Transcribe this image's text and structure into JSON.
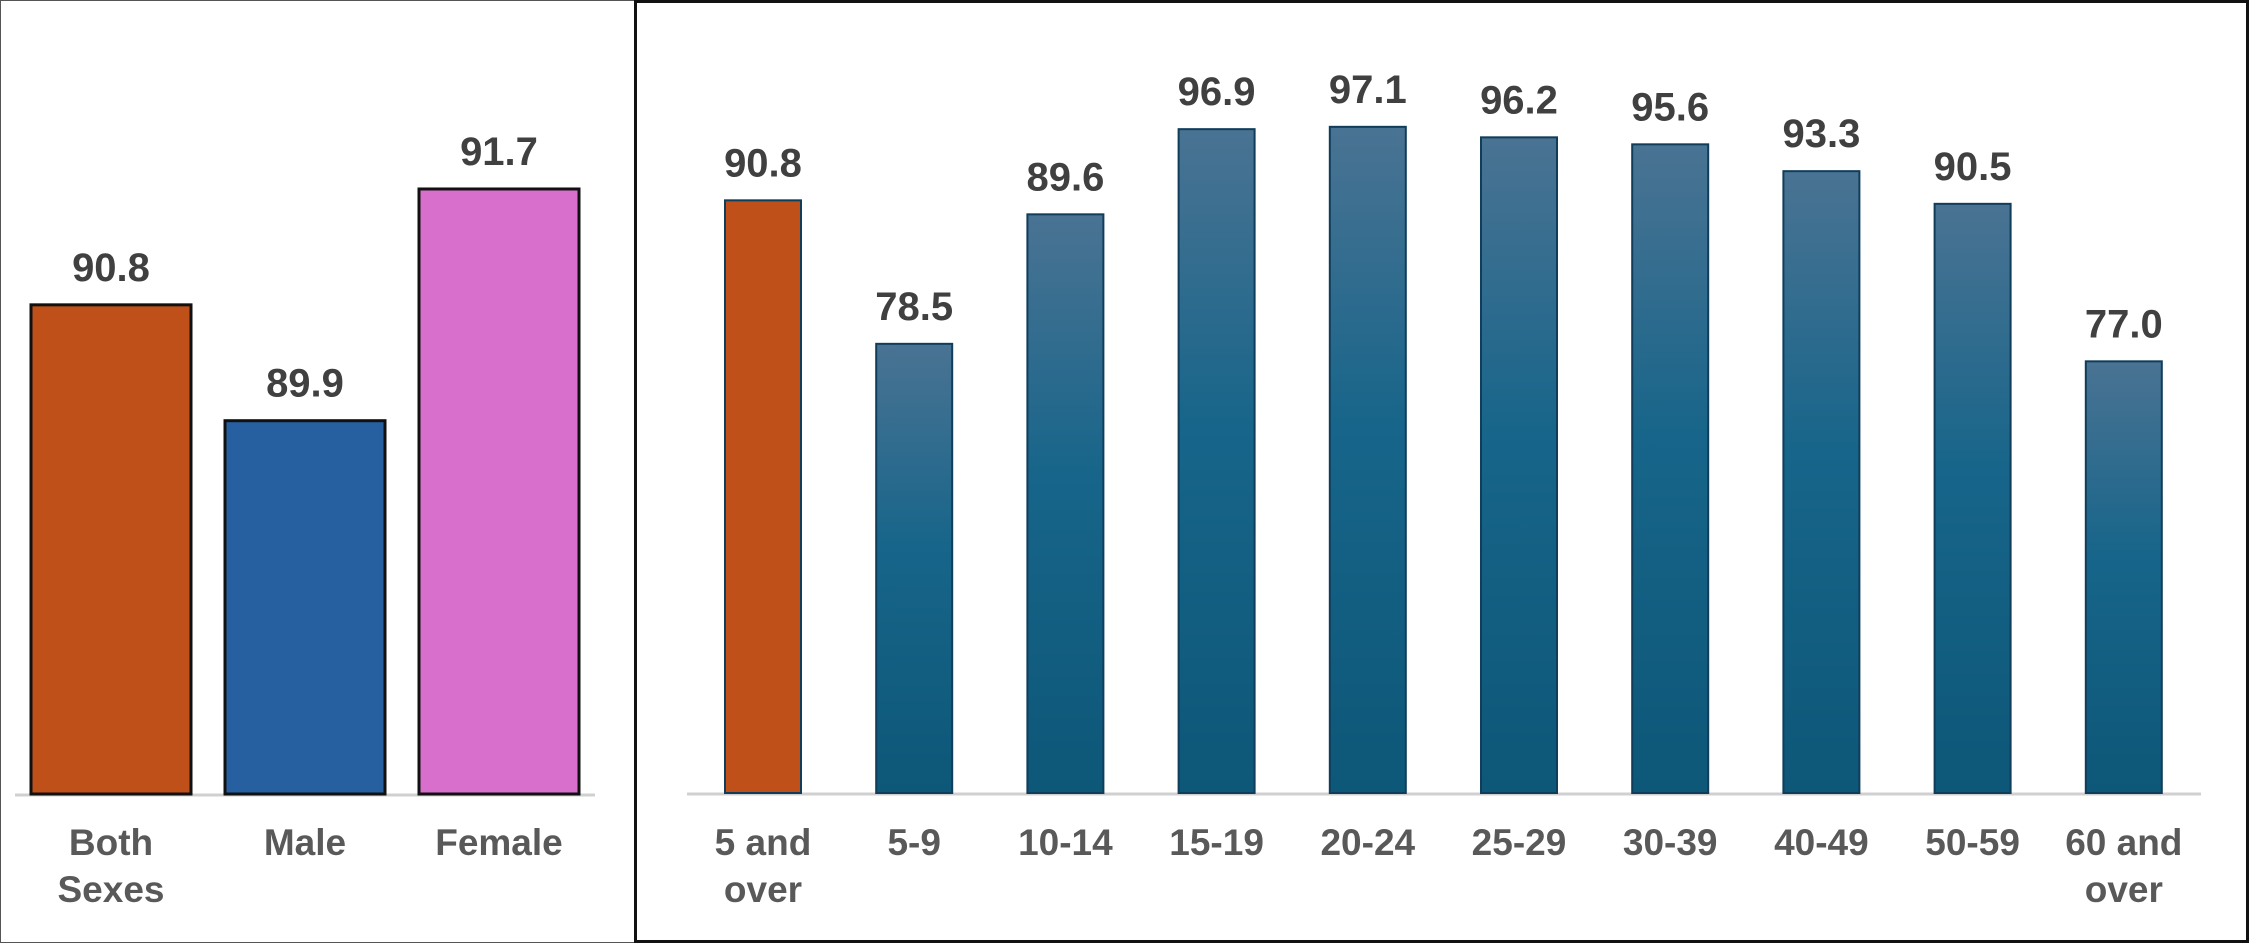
{
  "chart_data": [
    {
      "type": "bar",
      "title": "",
      "xlabel": "",
      "ylabel": "",
      "categories": [
        "Both Sexes",
        "Male",
        "Female"
      ],
      "category_lines": [
        [
          "Both",
          "Sexes"
        ],
        [
          "Male"
        ],
        [
          "Female"
        ]
      ],
      "values": [
        90.8,
        89.9,
        91.7
      ],
      "value_labels": [
        "90.8",
        "89.9",
        "91.7"
      ],
      "bar_colors": [
        "#c0501a",
        "#2660a0",
        "#d86fcc"
      ],
      "ylim": [
        87.0,
        92.5
      ],
      "grid": false,
      "legend": false
    },
    {
      "type": "bar",
      "title": "",
      "xlabel": "",
      "ylabel": "",
      "categories": [
        "5 and over",
        "5-9",
        "10-14",
        "15-19",
        "20-24",
        "25-29",
        "30-39",
        "40-49",
        "50-59",
        "60 and over"
      ],
      "category_lines": [
        [
          "5 and",
          "over"
        ],
        [
          "5-9"
        ],
        [
          "10-14"
        ],
        [
          "15-19"
        ],
        [
          "20-24"
        ],
        [
          "25-29"
        ],
        [
          "30-39"
        ],
        [
          "40-49"
        ],
        [
          "50-59"
        ],
        [
          "60 and",
          "over"
        ]
      ],
      "values": [
        90.8,
        78.5,
        89.6,
        96.9,
        97.1,
        96.2,
        95.6,
        93.3,
        90.5,
        77.0
      ],
      "value_labels": [
        "90.8",
        "78.5",
        "89.6",
        "96.9",
        "97.1",
        "96.2",
        "95.6",
        "93.3",
        "90.5",
        "77.0"
      ],
      "bar_colors": [
        "#c0501a",
        "#1f5f82",
        "#1f5f82",
        "#1f5f82",
        "#1f5f82",
        "#1f5f82",
        "#1f5f82",
        "#1f5f82",
        "#1f5f82",
        "#1f5f82"
      ],
      "highlight_color": "#c0501a",
      "ylim": [
        40,
        100
      ],
      "grid": false,
      "legend": false
    }
  ]
}
